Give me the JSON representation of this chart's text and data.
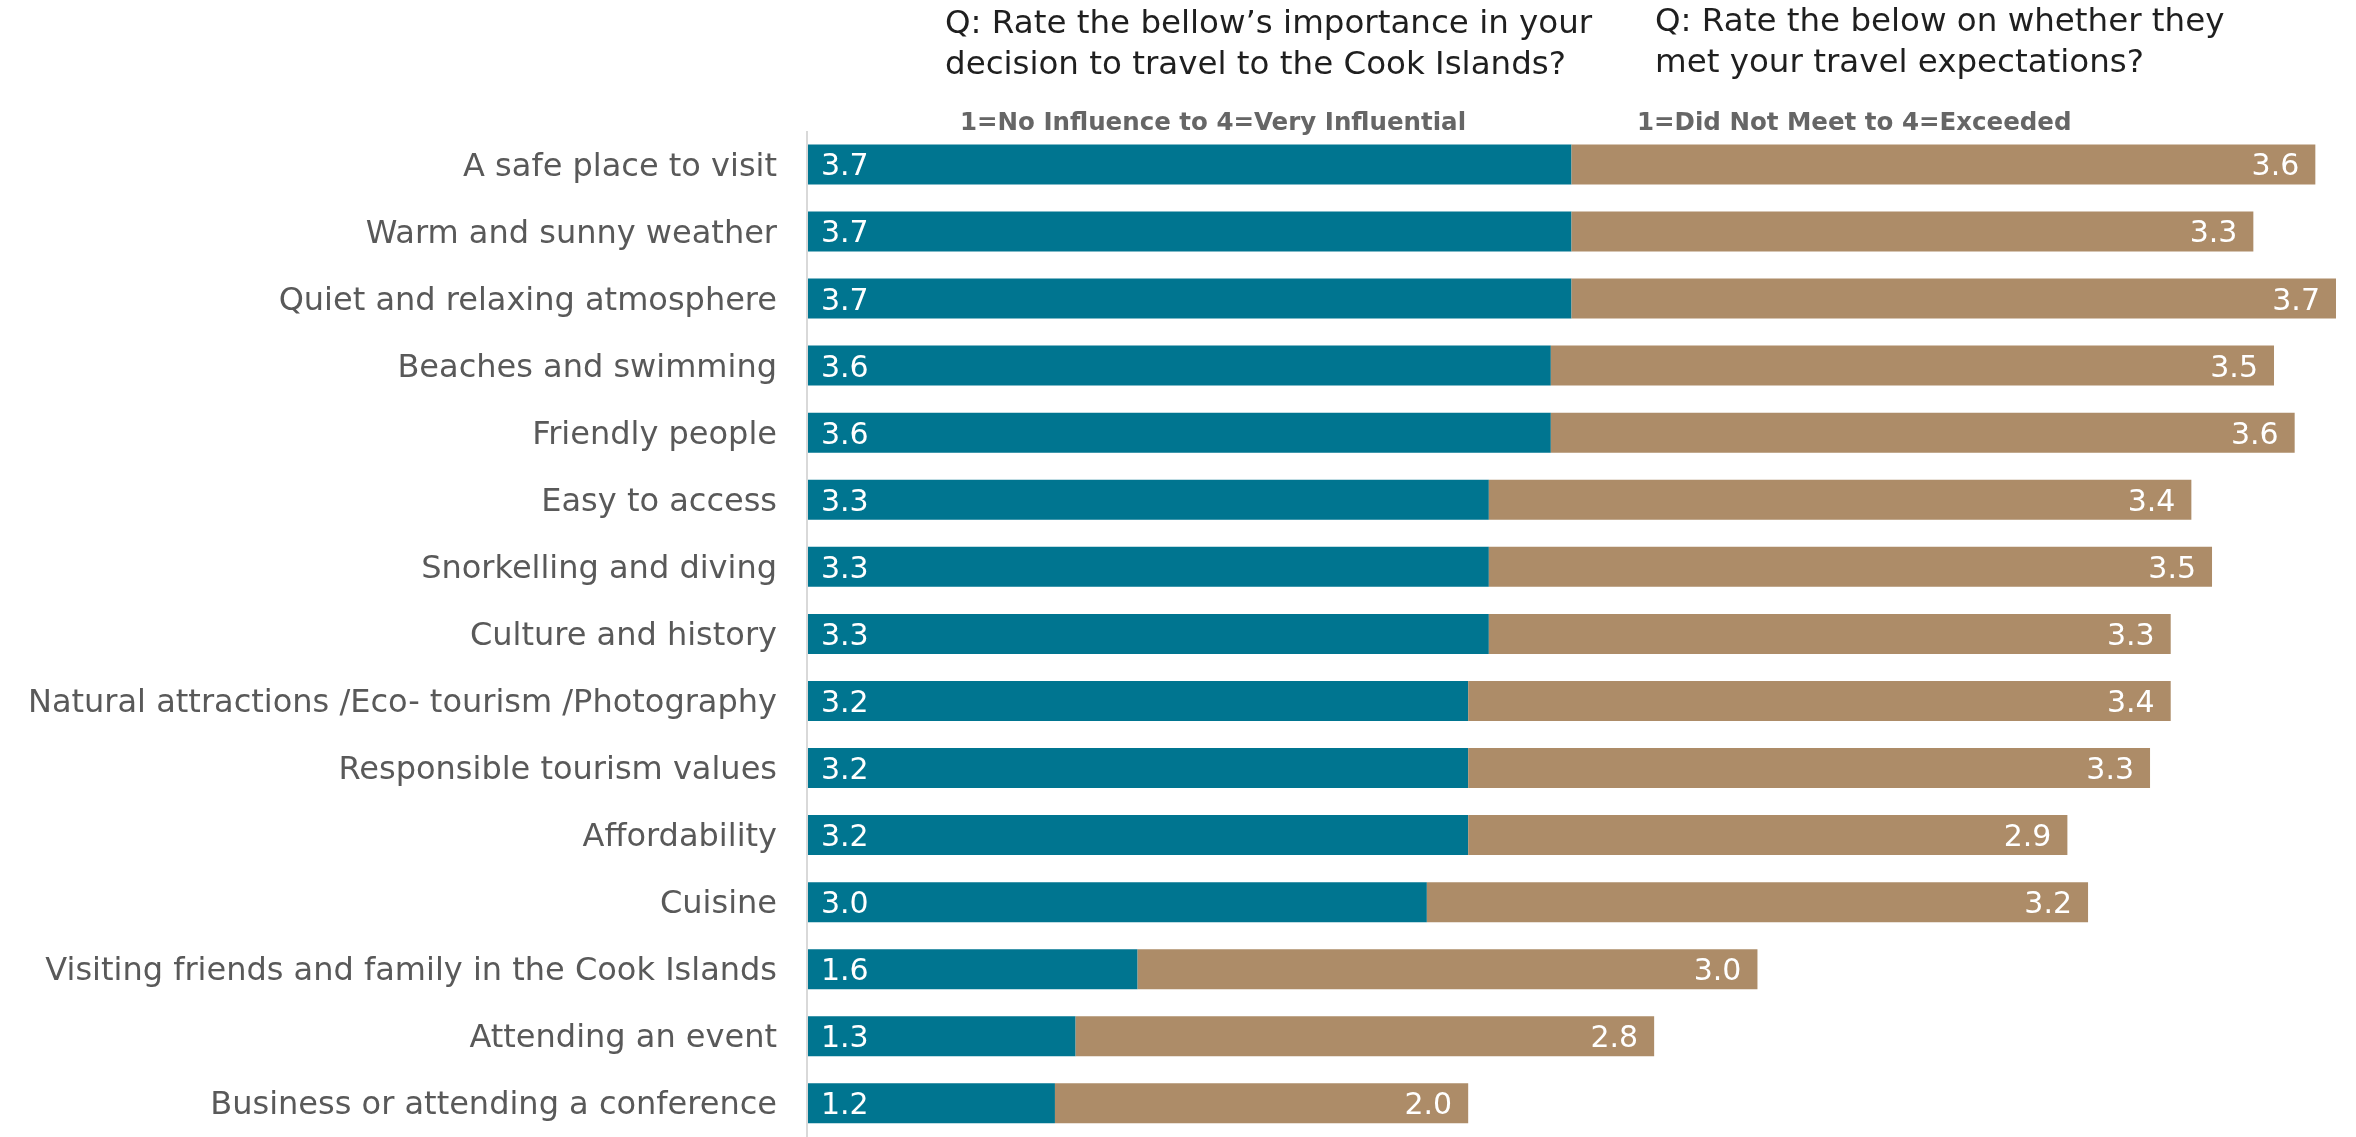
{
  "chart_data": {
    "type": "bar",
    "orientation": "horizontal",
    "stacked": true,
    "tick_labels": "y",
    "categories": [
      "A safe place to visit",
      "Warm and sunny weather",
      "Quiet and relaxing atmosphere",
      "Beaches and swimming",
      "Friendly people",
      "Easy to access",
      "Snorkelling and diving",
      "Culture and history",
      "Natural attractions /Eco- tourism /Photography",
      "Responsible tourism values",
      "Affordability",
      "Cuisine",
      "Visiting friends and family in the Cook Islands",
      "Attending an event",
      "Business or attending a conference"
    ],
    "series": [
      {
        "color": "#007590",
        "values": [
          3.7,
          3.7,
          3.7,
          3.6,
          3.6,
          3.3,
          3.3,
          3.3,
          3.2,
          3.2,
          3.2,
          3.0,
          1.6,
          1.3,
          1.2
        ],
        "value_labels": [
          "3.7",
          "3.7",
          "3.7",
          "3.6",
          "3.6",
          "3.3",
          "3.3",
          "3.3",
          "3.2",
          "3.2",
          "3.2",
          "3.0",
          "1.6",
          "1.3",
          "1.2"
        ]
      },
      {
        "color": "#ad8c68",
        "values": [
          3.6,
          3.3,
          3.7,
          3.5,
          3.6,
          3.4,
          3.5,
          3.3,
          3.4,
          3.3,
          2.9,
          3.2,
          3.0,
          2.8,
          2.0
        ],
        "value_labels": [
          "3.6",
          "3.3",
          "3.7",
          "3.5",
          "3.6",
          "3.4",
          "3.5",
          "3.3",
          "3.4",
          "3.3",
          "2.9",
          "3.2",
          "3.0",
          "2.8",
          "2.0"
        ]
      }
    ],
    "annotations": [
      "Q: Rate the bellow’s importance in your decision to travel to the Cook Islands?",
      "Q: Rate the below on whether they met your travel expectations?",
      "1=No Influence to 4=Very Influential",
      "1=Did Not Meet to 4=Exceeded"
    ]
  }
}
